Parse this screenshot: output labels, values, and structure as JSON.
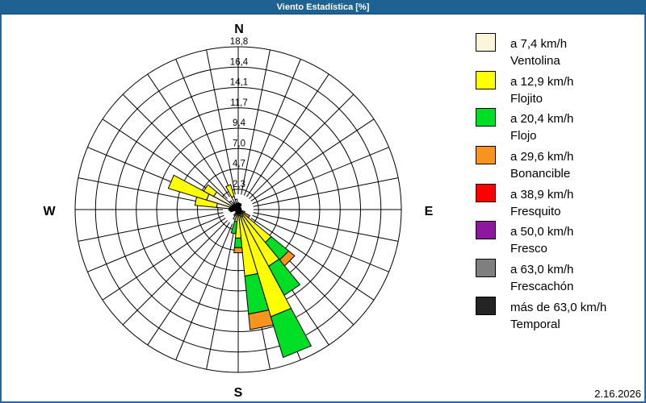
{
  "window": {
    "title": "Viento Estadística [%]"
  },
  "footer": {
    "date": "2.16.2026"
  },
  "colors": {
    "titlebar": "#1D6293",
    "frame": "#2765A4",
    "grid": "#000000",
    "background": "#FFFFFF"
  },
  "chart_data": {
    "type": "wind-rose",
    "units": "percent",
    "sectors": 32,
    "axis_max": 18.75,
    "ring_values": [
      2.3,
      4.7,
      7.0,
      9.4,
      11.7,
      14.1,
      16.4,
      18.8
    ],
    "ring_labels": [
      "2,3",
      "4,7",
      "7,0",
      "9,4",
      "11,7",
      "14,1",
      "16,4",
      "18,8"
    ],
    "compass": {
      "n": "N",
      "e": "E",
      "s": "S",
      "w": "W"
    },
    "legend_position": "right",
    "speed_classes": [
      {
        "speed": "a 7,4 km/h",
        "name": "Ventolina",
        "color": "#FBF5DA"
      },
      {
        "speed": "a 12,9 km/h",
        "name": "Flojito",
        "color": "#FFFF00"
      },
      {
        "speed": "a 20,4 km/h",
        "name": "Flojo",
        "color": "#00DF26"
      },
      {
        "speed": "a 29,6 km/h",
        "name": "Bonancible",
        "color": "#F7941D"
      },
      {
        "speed": "a 38,9 km/h",
        "name": "Fresquito",
        "color": "#FF0000"
      },
      {
        "speed": "a 50,0 km/h",
        "name": "Fresco",
        "color": "#8E189B"
      },
      {
        "speed": "a 63,0 km/h",
        "name": "Frescachón",
        "color": "#7F7F7F"
      },
      {
        "speed": "más de 63,0 km/h",
        "name": "Temporal",
        "color": "#242424"
      }
    ],
    "petals": [
      {
        "direction_deg": 0.0,
        "segments": [
          [
            "Ventolina",
            0.8
          ]
        ]
      },
      {
        "direction_deg": 112.5,
        "segments": [
          [
            "Ventolina",
            0.8
          ]
        ]
      },
      {
        "direction_deg": 123.75,
        "segments": [
          [
            "Ventolina",
            0.4
          ],
          [
            "Bonancible",
            1.1
          ]
        ]
      },
      {
        "direction_deg": 135.0,
        "segments": [
          [
            "Ventolina",
            0.7
          ],
          [
            "Flojito",
            4.2
          ],
          [
            "Flojo",
            2.6
          ],
          [
            "Bonancible",
            0.9
          ]
        ]
      },
      {
        "direction_deg": 146.25,
        "segments": [
          [
            "Ventolina",
            0.9
          ],
          [
            "Flojito",
            6.5
          ],
          [
            "Flojo",
            3.8
          ]
        ]
      },
      {
        "direction_deg": 157.5,
        "segments": [
          [
            "Ventolina",
            0.9
          ],
          [
            "Flojito",
            12.0
          ],
          [
            "Flojo",
            4.9
          ]
        ]
      },
      {
        "direction_deg": 168.75,
        "segments": [
          [
            "Ventolina",
            0.7
          ],
          [
            "Flojito",
            7.0
          ],
          [
            "Flojo",
            4.4
          ],
          [
            "Bonancible",
            1.8
          ]
        ]
      },
      {
        "direction_deg": 180.0,
        "segments": [
          [
            "Flojito",
            3.3
          ],
          [
            "Flojo",
            1.1
          ],
          [
            "Bonancible",
            0.6
          ]
        ]
      },
      {
        "direction_deg": 191.25,
        "segments": [
          [
            "Ventolina",
            1.4
          ],
          [
            "Flojo",
            1.4
          ]
        ]
      },
      {
        "direction_deg": 202.5,
        "segments": [
          [
            "Ventolina",
            1.2
          ]
        ]
      },
      {
        "direction_deg": 213.75,
        "segments": [
          [
            "Ventolina",
            0.8
          ]
        ]
      },
      {
        "direction_deg": 258.75,
        "segments": [
          [
            "Ventolina",
            0.9
          ]
        ]
      },
      {
        "direction_deg": 270.0,
        "segments": [
          [
            "Ventolina",
            0.7
          ]
        ]
      },
      {
        "direction_deg": 281.25,
        "segments": [
          [
            "Ventolina",
            2.5
          ],
          [
            "Flojito",
            2.5
          ]
        ]
      },
      {
        "direction_deg": 292.5,
        "segments": [
          [
            "Ventolina",
            3.8
          ],
          [
            "Flojito",
            4.6
          ]
        ]
      },
      {
        "direction_deg": 303.75,
        "segments": [
          [
            "Ventolina",
            3.2
          ],
          [
            "Flojito",
            1.3
          ]
        ]
      },
      {
        "direction_deg": 315.0,
        "segments": [
          [
            "Ventolina",
            1.3
          ]
        ]
      },
      {
        "direction_deg": 326.25,
        "segments": [
          [
            "Ventolina",
            0.9
          ]
        ]
      },
      {
        "direction_deg": 337.5,
        "segments": [
          [
            "Ventolina",
            1.6
          ],
          [
            "Flojito",
            1.4
          ]
        ]
      },
      {
        "direction_deg": 348.75,
        "segments": [
          [
            "Ventolina",
            1.2
          ]
        ]
      }
    ]
  }
}
